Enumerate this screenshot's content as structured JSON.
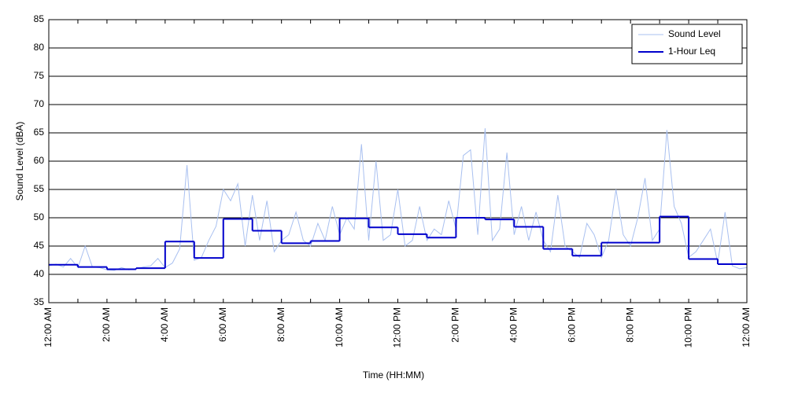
{
  "chart_data": {
    "type": "line",
    "xlabel": "Time (HH:MM)",
    "ylabel": "Sound Level (dBA)",
    "xlim": [
      0,
      24
    ],
    "ylim": [
      35,
      85
    ],
    "yticks": [
      35,
      40,
      45,
      50,
      55,
      60,
      65,
      70,
      75,
      80,
      85
    ],
    "xticks": [
      {
        "value": 0,
        "label": "12:00 AM"
      },
      {
        "value": 2,
        "label": "2:00 AM"
      },
      {
        "value": 4,
        "label": "4:00 AM"
      },
      {
        "value": 6,
        "label": "6:00 AM"
      },
      {
        "value": 8,
        "label": "8:00 AM"
      },
      {
        "value": 10,
        "label": "10:00 AM"
      },
      {
        "value": 12,
        "label": "12:00 PM"
      },
      {
        "value": 14,
        "label": "2:00 PM"
      },
      {
        "value": 16,
        "label": "4:00 PM"
      },
      {
        "value": 18,
        "label": "6:00 PM"
      },
      {
        "value": 20,
        "label": "8:00 PM"
      },
      {
        "value": 22,
        "label": "10:00 PM"
      },
      {
        "value": 24,
        "label": "12:00 AM"
      }
    ],
    "xminor_ticks": [
      1,
      3,
      5,
      7,
      9,
      11,
      13,
      15,
      17,
      19,
      21,
      23
    ],
    "grid": true,
    "legend": "upper right",
    "series": [
      {
        "name": "Sound Level",
        "color": "#a9c0f0",
        "style": "line",
        "x": [
          0,
          0.25,
          0.5,
          0.75,
          1,
          1.25,
          1.5,
          1.75,
          2,
          2.25,
          2.5,
          2.75,
          3,
          3.25,
          3.5,
          3.75,
          4,
          4.25,
          4.5,
          4.75,
          5,
          5.25,
          5.5,
          5.75,
          6,
          6.25,
          6.5,
          6.75,
          7,
          7.25,
          7.5,
          7.75,
          8,
          8.25,
          8.5,
          8.75,
          9,
          9.25,
          9.5,
          9.75,
          10,
          10.25,
          10.5,
          10.75,
          11,
          11.25,
          11.5,
          11.75,
          12,
          12.25,
          12.5,
          12.75,
          13,
          13.25,
          13.5,
          13.75,
          14,
          14.25,
          14.5,
          14.75,
          15,
          15.25,
          15.5,
          15.75,
          16,
          16.25,
          16.5,
          16.75,
          17,
          17.25,
          17.5,
          17.75,
          18,
          18.25,
          18.5,
          18.75,
          19,
          19.25,
          19.5,
          19.75,
          20,
          20.25,
          20.5,
          20.75,
          21,
          21.25,
          21.5,
          21.75,
          22,
          22.25,
          22.5,
          22.75,
          23,
          23.25,
          23.5,
          23.75,
          24
        ],
        "values": [
          41.5,
          41.8,
          41.3,
          42.8,
          41.2,
          45,
          41.3,
          41.2,
          40.8,
          40.7,
          41.2,
          40.8,
          41,
          41.3,
          41.5,
          42.8,
          41.2,
          42,
          44.5,
          59.3,
          42.5,
          43,
          46,
          48.5,
          55,
          53,
          56,
          45,
          54,
          46,
          53,
          44,
          46,
          47,
          51,
          46,
          45,
          49,
          46,
          52,
          47,
          50,
          48,
          63,
          46,
          60,
          46,
          47,
          55,
          45,
          46,
          52,
          46,
          48,
          47,
          53,
          48,
          61,
          62,
          47,
          65.8,
          46,
          48,
          61.5,
          47,
          52,
          46,
          51,
          46,
          44,
          54,
          45,
          44,
          43,
          49,
          47,
          43,
          46,
          55,
          47,
          45,
          50,
          57,
          46,
          48,
          65.5,
          52,
          49,
          43,
          44,
          46,
          48,
          42,
          51,
          41.5,
          41,
          41.2
        ]
      },
      {
        "name": "1-Hour Leq",
        "color": "#0000cc",
        "style": "step",
        "x": [
          0,
          1,
          2,
          3,
          4,
          5,
          6,
          7,
          8,
          9,
          10,
          11,
          12,
          13,
          14,
          15,
          16,
          17,
          18,
          19,
          20,
          21,
          22,
          23
        ],
        "values": [
          41.7,
          41.3,
          40.9,
          41.1,
          45.8,
          42.9,
          49.8,
          47.7,
          45.5,
          45.9,
          49.9,
          48.3,
          47.1,
          46.5,
          50.0,
          49.7,
          48.4,
          44.5,
          43.3,
          45.6,
          45.6,
          50.2,
          42.7,
          41.8
        ]
      }
    ]
  }
}
